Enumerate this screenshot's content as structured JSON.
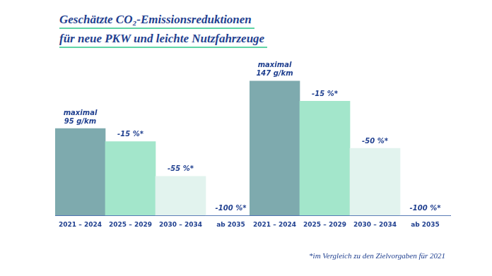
{
  "header": {
    "title": [
      "Geschätzte CO₂-Emissionsreduktionen",
      "für neue PKW und leichte Nutzfahrzeuge"
    ]
  },
  "footnote": "*im Vergleich zu den Zielvorgaben für 2021",
  "chart_data": [
    {
      "type": "bar",
      "categories": [
        "2021 – 2024",
        "2025 – 2029",
        "2030 – 2034",
        "ab 2035"
      ],
      "values": [
        95,
        80.75,
        42.75,
        0
      ],
      "colors": [
        "#7eaaae",
        "#a3e6cb",
        "#e2f3ee",
        "#e2f3ee"
      ],
      "annotations": [
        [
          "maximal",
          "95 g/km"
        ],
        [
          "-15 %*"
        ],
        [
          "-55 %*"
        ],
        [
          "-100 %*"
        ]
      ],
      "ylim": [
        0,
        160
      ],
      "grid": false,
      "tick_labels": "x"
    },
    {
      "type": "bar",
      "categories": [
        "2021 – 2024",
        "2025 – 2029",
        "2030 – 2034",
        "ab 2035"
      ],
      "values": [
        147,
        124.95,
        73.5,
        0
      ],
      "colors": [
        "#7eaaae",
        "#a3e6cb",
        "#e2f3ee",
        "#e2f3ee"
      ],
      "annotations": [
        [
          "maximal",
          "147 g/km"
        ],
        [
          "-15 %*"
        ],
        [
          "-50 %*"
        ],
        [
          "-100 %*"
        ]
      ],
      "ylim": [
        0,
        160
      ],
      "grid": false,
      "tick_labels": "x"
    }
  ]
}
